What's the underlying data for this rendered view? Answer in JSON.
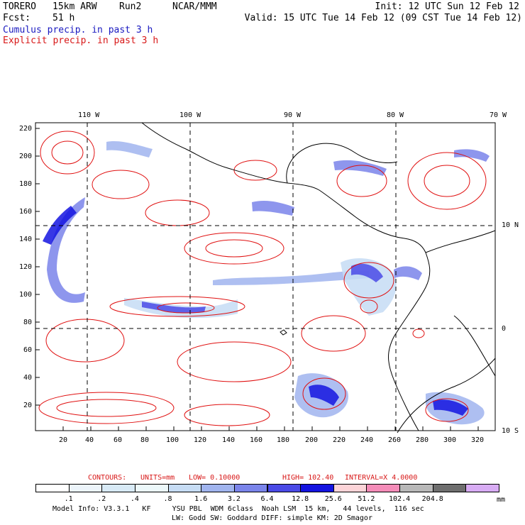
{
  "header": {
    "model": "TORERO",
    "resolution": "15km ARW",
    "run": "Run2",
    "org": "NCAR/MMM",
    "fcst_label": "Fcst:",
    "fcst_value": "51 h",
    "init": "Init: 12 UTC Sun 12 Feb 12",
    "valid": "Valid: 15 UTC Tue 14 Feb 12 (09 CST Tue 14 Feb 12)"
  },
  "fields": {
    "cumulus": "Cumulus precip. in past 3 h",
    "explicit": "Explicit precip. in past 3 h"
  },
  "axes": {
    "top_lon": [
      "110 W",
      "100 W",
      "90 W",
      "80 W",
      "70 W"
    ],
    "right_lat": [
      "10 N",
      "0",
      "10 S"
    ],
    "left_y": [
      "220",
      "200",
      "180",
      "160",
      "140",
      "120",
      "100",
      "80",
      "60",
      "40",
      "20"
    ],
    "bottom_x": [
      "20",
      "40",
      "60",
      "80",
      "100",
      "120",
      "140",
      "160",
      "180",
      "200",
      "220",
      "240",
      "260",
      "280",
      "300",
      "320"
    ]
  },
  "contours": {
    "label": "CONTOURS:",
    "units": "UNITS=mm",
    "low": "LOW= 0.10000",
    "high": "HIGH= 102.40",
    "interval": "INTERVAL=X 4.0000"
  },
  "colorbar": {
    "labels": [
      ".1",
      ".2",
      ".4",
      ".8",
      "1.6",
      "3.2",
      "6.4",
      "12.8",
      "25.6",
      "51.2",
      "102.4",
      "204.8"
    ],
    "unit": "mm",
    "colors": [
      "#ffffff",
      "#ecf4fa",
      "#d8eaf6",
      "#ecf8fa",
      "#c6dcf4",
      "#a0b4ee",
      "#7a84ea",
      "#4a4ae6",
      "#1414e0",
      "#fcd4d8",
      "#f48cb8",
      "#b8b8b8",
      "#6e6e6e",
      "#d8acf4"
    ]
  },
  "footer": {
    "line1": "Model Info: V3.3.1   KF     YSU PBL  WDM 6class  Noah LSM  15 km,   44 levels,  116 sec",
    "line2": "LW: Godd SW: Goddard DIFF: simple KM: 2D Smagor"
  },
  "colors": {
    "cumulus_text": "#1a1ac0",
    "explicit_text": "#d81818",
    "coast": "#000000",
    "explicit_contour": "#e01010",
    "cumulus_light": "#c6dcf4",
    "cumulus_mid": "#7a84ea",
    "cumulus_dark": "#1414e0"
  }
}
